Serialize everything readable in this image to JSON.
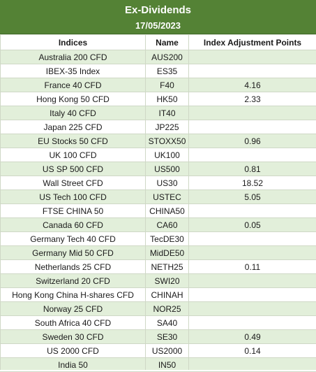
{
  "header": {
    "title": "Ex-Dividends",
    "date": "17/05/2023"
  },
  "columns": {
    "indices": "Indices",
    "name": "Name",
    "points": "Index Adjustment Points"
  },
  "rows": [
    {
      "index": "Australia 200 CFD",
      "name": "AUS200",
      "points": ""
    },
    {
      "index": "IBEX-35 Index",
      "name": "ES35",
      "points": ""
    },
    {
      "index": "France 40 CFD",
      "name": "F40",
      "points": "4.16"
    },
    {
      "index": "Hong Kong 50 CFD",
      "name": "HK50",
      "points": "2.33"
    },
    {
      "index": "Italy 40 CFD",
      "name": "IT40",
      "points": ""
    },
    {
      "index": "Japan 225 CFD",
      "name": "JP225",
      "points": ""
    },
    {
      "index": "EU Stocks 50 CFD",
      "name": "STOXX50",
      "points": "0.96"
    },
    {
      "index": "UK 100 CFD",
      "name": "UK100",
      "points": ""
    },
    {
      "index": "US SP 500 CFD",
      "name": "US500",
      "points": "0.81"
    },
    {
      "index": "Wall Street CFD",
      "name": "US30",
      "points": "18.52"
    },
    {
      "index": "US Tech 100 CFD",
      "name": "USTEC",
      "points": "5.05"
    },
    {
      "index": "FTSE CHINA 50",
      "name": "CHINA50",
      "points": ""
    },
    {
      "index": "Canada 60 CFD",
      "name": "CA60",
      "points": "0.05"
    },
    {
      "index": "Germany Tech 40 CFD",
      "name": "TecDE30",
      "points": ""
    },
    {
      "index": "Germany Mid 50 CFD",
      "name": "MidDE50",
      "points": ""
    },
    {
      "index": "Netherlands 25 CFD",
      "name": "NETH25",
      "points": "0.11"
    },
    {
      "index": "Switzerland 20 CFD",
      "name": "SWI20",
      "points": ""
    },
    {
      "index": "Hong Kong China H-shares CFD",
      "name": "CHINAH",
      "points": ""
    },
    {
      "index": "Norway 25 CFD",
      "name": "NOR25",
      "points": ""
    },
    {
      "index": "South Africa 40 CFD",
      "name": "SA40",
      "points": ""
    },
    {
      "index": "Sweden 30 CFD",
      "name": "SE30",
      "points": "0.49"
    },
    {
      "index": "US 2000 CFD",
      "name": "US2000",
      "points": "0.14"
    },
    {
      "index": "India 50",
      "name": "IN50",
      "points": ""
    }
  ]
}
